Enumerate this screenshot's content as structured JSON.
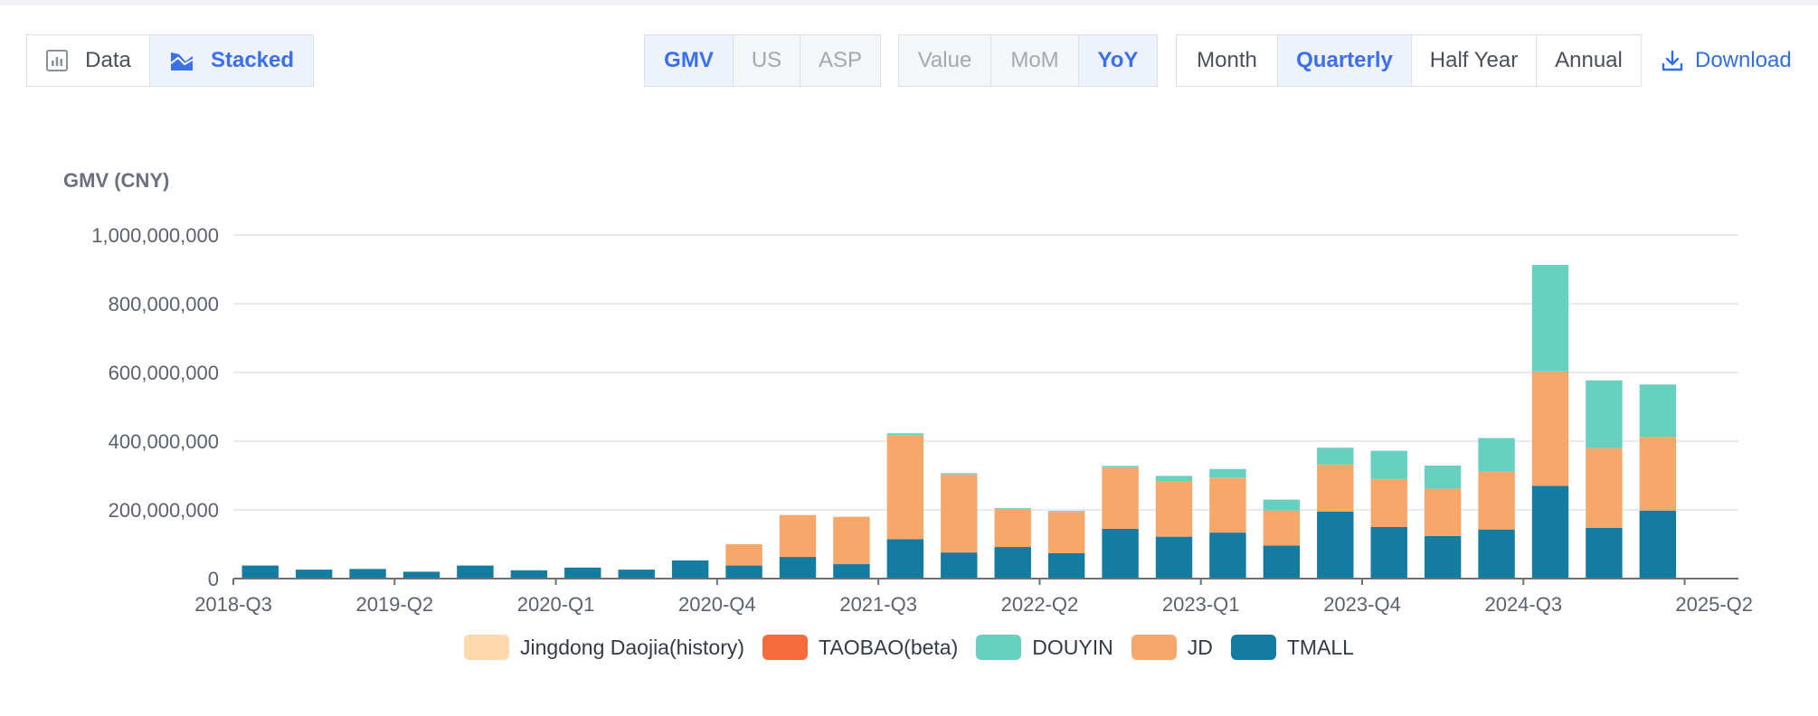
{
  "toolbar": {
    "view_group": [
      {
        "label": "Data",
        "icon": "table-chart-icon",
        "active": false
      },
      {
        "label": "Stacked",
        "icon": "stacked-area-icon",
        "active": true
      }
    ],
    "metric_group": [
      {
        "label": "GMV",
        "active": true
      },
      {
        "label": "US",
        "active": false
      },
      {
        "label": "ASP",
        "active": false
      }
    ],
    "compare_group": [
      {
        "label": "Value",
        "active": false
      },
      {
        "label": "MoM",
        "active": false
      },
      {
        "label": "YoY",
        "active": true
      }
    ],
    "period_group": [
      {
        "label": "Month",
        "active": false
      },
      {
        "label": "Quarterly",
        "active": true
      },
      {
        "label": "Half Year",
        "active": false
      },
      {
        "label": "Annual",
        "active": false
      }
    ],
    "download_label": "Download"
  },
  "chart_data": {
    "type": "bar",
    "stacked": true,
    "ylabel": "GMV (CNY)",
    "ylim": [
      0,
      1000000000
    ],
    "yticks": [
      0,
      200000000,
      400000000,
      600000000,
      800000000,
      1000000000
    ],
    "ytick_labels": [
      "0",
      "200,000,000",
      "400,000,000",
      "600,000,000",
      "800,000,000",
      "1,000,000,000"
    ],
    "categories": [
      "2018-Q3",
      "2018-Q4",
      "2019-Q1",
      "2019-Q2",
      "2019-Q3",
      "2019-Q4",
      "2020-Q1",
      "2020-Q2",
      "2020-Q3",
      "2020-Q4",
      "2021-Q1",
      "2021-Q2",
      "2021-Q3",
      "2021-Q4",
      "2022-Q1",
      "2022-Q2",
      "2022-Q3",
      "2022-Q4",
      "2023-Q1",
      "2023-Q2",
      "2023-Q3",
      "2023-Q4",
      "2024-Q1",
      "2024-Q2",
      "2024-Q3",
      "2024-Q4",
      "2025-Q1",
      "2025-Q2"
    ],
    "xtick_labels": [
      "2018-Q3",
      "2019-Q2",
      "2020-Q1",
      "2020-Q4",
      "2021-Q3",
      "2022-Q2",
      "2023-Q1",
      "2023-Q4",
      "2024-Q3",
      "2025-Q2"
    ],
    "legend_position": "bottom",
    "series": [
      {
        "name": "TMALL",
        "color": "#137ca0",
        "values": [
          38000000,
          26000000,
          28000000,
          20000000,
          38000000,
          24000000,
          32000000,
          26000000,
          53000000,
          38000000,
          63000000,
          42000000,
          115000000,
          76000000,
          92000000,
          74000000,
          145000000,
          122000000,
          134000000,
          96000000,
          195000000,
          150000000,
          124000000,
          143000000,
          270000000,
          148000000,
          198000000,
          0
        ]
      },
      {
        "name": "JD",
        "color": "#f8a76b",
        "values": [
          0,
          0,
          0,
          0,
          0,
          0,
          0,
          0,
          0,
          62000000,
          122000000,
          138000000,
          303000000,
          227000000,
          110000000,
          120000000,
          178000000,
          162000000,
          160000000,
          102000000,
          137000000,
          140000000,
          138000000,
          168000000,
          333000000,
          232000000,
          215000000,
          0
        ]
      },
      {
        "name": "DOUYIN",
        "color": "#66d0c1",
        "values": [
          0,
          0,
          0,
          0,
          0,
          0,
          0,
          0,
          0,
          0,
          0,
          0,
          5000000,
          4000000,
          3000000,
          3000000,
          5000000,
          15000000,
          25000000,
          32000000,
          49000000,
          82000000,
          67000000,
          98000000,
          310000000,
          197000000,
          152000000,
          0
        ]
      },
      {
        "name": "TAOBAO(beta)",
        "color": "#f56b3d",
        "values": [
          0,
          0,
          0,
          0,
          0,
          0,
          0,
          0,
          0,
          0,
          0,
          0,
          0,
          0,
          0,
          0,
          0,
          0,
          0,
          0,
          0,
          0,
          0,
          0,
          0,
          0,
          0,
          0
        ]
      },
      {
        "name": "Jingdong Daojia(history)",
        "color": "#fdd9ac",
        "values": [
          0,
          0,
          0,
          0,
          0,
          0,
          0,
          0,
          0,
          0,
          0,
          0,
          0,
          0,
          0,
          0,
          0,
          0,
          0,
          0,
          0,
          0,
          0,
          0,
          0,
          0,
          0,
          0
        ]
      }
    ]
  },
  "legend": [
    {
      "label": "Jingdong Daojia(history)",
      "color": "#fdd9ac"
    },
    {
      "label": "TAOBAO(beta)",
      "color": "#f56b3d"
    },
    {
      "label": "DOUYIN",
      "color": "#66d0c1"
    },
    {
      "label": "JD",
      "color": "#f8a76b"
    },
    {
      "label": "TMALL",
      "color": "#137ca0"
    }
  ]
}
